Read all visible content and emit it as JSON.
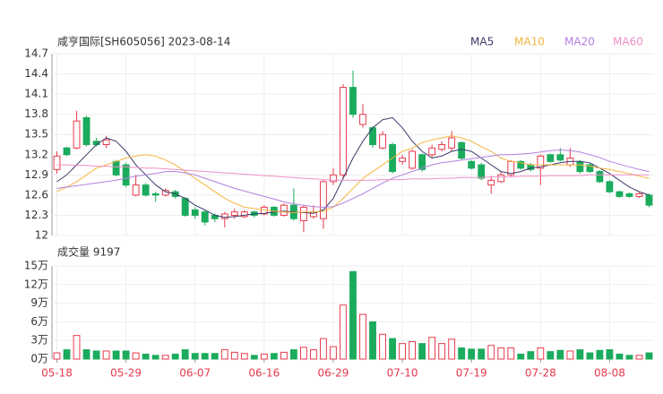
{
  "chart_data": [
    {
      "type": "candlestick",
      "title": "咸亨国际[SH605056] 2023-08-14",
      "categories": [
        "05-18",
        null,
        null,
        null,
        null,
        null,
        null,
        "05-29",
        null,
        null,
        null,
        null,
        null,
        null,
        "06-07",
        null,
        null,
        null,
        null,
        null,
        null,
        "06-16",
        null,
        null,
        null,
        null,
        null,
        null,
        "06-29",
        null,
        null,
        null,
        null,
        null,
        null,
        "07-10",
        null,
        null,
        null,
        null,
        null,
        null,
        "07-19",
        null,
        null,
        null,
        null,
        null,
        null,
        "07-28",
        null,
        null,
        null,
        null,
        null,
        null,
        "08-08",
        null,
        null,
        null,
        null
      ],
      "open": [
        12.98,
        13.3,
        13.3,
        13.75,
        13.4,
        13.35,
        13.1,
        13.05,
        12.6,
        12.75,
        12.62,
        12.6,
        12.65,
        12.55,
        12.38,
        12.35,
        12.3,
        12.25,
        12.3,
        12.28,
        12.35,
        12.32,
        12.42,
        12.3,
        12.45,
        12.22,
        12.28,
        12.25,
        12.8,
        12.9,
        14.2,
        13.65,
        13.6,
        13.3,
        13.35,
        13.1,
        13.0,
        13.2,
        13.2,
        13.28,
        13.3,
        13.38,
        13.1,
        13.05,
        12.75,
        12.8,
        12.9,
        13.1,
        13.05,
        13.0,
        13.2,
        13.2,
        13.05,
        13.1,
        13.05,
        12.95,
        12.8,
        12.65,
        12.62,
        12.58,
        12.6
      ],
      "high": [
        13.25,
        13.32,
        13.85,
        13.78,
        13.45,
        13.48,
        13.12,
        13.08,
        12.9,
        12.78,
        12.65,
        12.7,
        12.68,
        12.57,
        12.42,
        12.38,
        12.33,
        12.35,
        12.4,
        12.38,
        12.37,
        12.45,
        12.44,
        12.48,
        12.7,
        12.45,
        12.45,
        12.82,
        13.0,
        14.25,
        14.45,
        13.95,
        13.62,
        13.55,
        13.38,
        13.2,
        13.28,
        13.22,
        13.35,
        13.4,
        13.55,
        13.4,
        13.12,
        13.08,
        12.88,
        12.95,
        13.12,
        13.12,
        13.08,
        13.2,
        13.22,
        13.3,
        13.3,
        13.12,
        13.07,
        12.97,
        12.82,
        12.67,
        12.64,
        12.64,
        12.62
      ],
      "low": [
        12.92,
        13.18,
        13.28,
        13.32,
        13.32,
        13.3,
        12.88,
        12.72,
        12.58,
        12.58,
        12.5,
        12.58,
        12.55,
        12.28,
        12.25,
        12.15,
        12.2,
        12.12,
        12.25,
        12.26,
        12.27,
        12.3,
        12.28,
        12.28,
        12.22,
        12.05,
        12.25,
        12.1,
        12.75,
        12.85,
        13.75,
        13.6,
        13.3,
        13.28,
        12.92,
        13.05,
        12.98,
        12.95,
        13.15,
        13.25,
        13.25,
        13.12,
        12.98,
        12.82,
        12.62,
        12.78,
        12.88,
        12.98,
        12.95,
        12.75,
        13.08,
        13.1,
        13.02,
        12.92,
        12.93,
        12.78,
        12.63,
        12.56,
        12.56,
        12.56,
        12.42
      ],
      "close": [
        13.18,
        13.2,
        13.7,
        13.35,
        13.35,
        13.42,
        12.9,
        12.75,
        12.75,
        12.6,
        12.6,
        12.67,
        12.58,
        12.3,
        12.3,
        12.2,
        12.25,
        12.32,
        12.35,
        12.35,
        12.3,
        12.42,
        12.3,
        12.45,
        12.25,
        12.42,
        12.35,
        12.8,
        12.9,
        14.2,
        13.8,
        13.8,
        13.35,
        13.5,
        12.95,
        13.15,
        13.25,
        12.98,
        13.3,
        13.35,
        13.45,
        13.15,
        13.0,
        12.85,
        12.82,
        12.9,
        13.1,
        13.0,
        12.98,
        13.18,
        13.1,
        13.12,
        13.15,
        12.95,
        12.95,
        12.8,
        12.65,
        12.58,
        12.58,
        12.62,
        12.45
      ],
      "series": [
        {
          "name": "MA5",
          "color": "#3a3a6a",
          "values": [
            12.8,
            12.9,
            13.05,
            13.2,
            13.35,
            13.45,
            13.4,
            13.25,
            13.05,
            12.9,
            12.75,
            12.65,
            12.62,
            12.55,
            12.45,
            12.38,
            12.3,
            12.27,
            12.28,
            12.3,
            12.32,
            12.33,
            12.35,
            12.36,
            12.35,
            12.34,
            12.33,
            12.38,
            12.55,
            12.85,
            13.15,
            13.4,
            13.6,
            13.72,
            13.75,
            13.6,
            13.4,
            13.25,
            13.15,
            13.18,
            13.25,
            13.28,
            13.25,
            13.15,
            13.05,
            12.95,
            12.92,
            12.95,
            13.0,
            13.02,
            13.05,
            13.08,
            13.1,
            13.1,
            13.08,
            13.0,
            12.92,
            12.82,
            12.72,
            12.65,
            12.6
          ]
        },
        {
          "name": "MA10",
          "color": "#f5b440",
          "values": [
            12.65,
            12.72,
            12.8,
            12.9,
            13.0,
            13.05,
            13.1,
            13.15,
            13.18,
            13.2,
            13.18,
            13.12,
            13.05,
            12.95,
            12.85,
            12.75,
            12.65,
            12.55,
            12.48,
            12.42,
            12.4,
            12.38,
            12.36,
            12.35,
            12.34,
            12.35,
            12.35,
            12.36,
            12.42,
            12.55,
            12.7,
            12.85,
            12.95,
            13.05,
            13.15,
            13.25,
            13.3,
            13.38,
            13.42,
            13.45,
            13.48,
            13.45,
            13.4,
            13.32,
            13.25,
            13.15,
            13.1,
            13.08,
            13.05,
            13.05,
            13.05,
            13.05,
            13.05,
            13.05,
            13.03,
            13.0,
            12.98,
            12.95,
            12.92,
            12.88,
            12.85
          ]
        },
        {
          "name": "MA20",
          "color": "#b37fe0",
          "values": [
            12.7,
            12.72,
            12.74,
            12.76,
            12.78,
            12.8,
            12.82,
            12.85,
            12.88,
            12.9,
            12.92,
            12.95,
            12.95,
            12.93,
            12.9,
            12.85,
            12.8,
            12.75,
            12.7,
            12.66,
            12.62,
            12.58,
            12.54,
            12.5,
            12.47,
            12.45,
            12.43,
            12.42,
            12.43,
            12.48,
            12.55,
            12.62,
            12.7,
            12.78,
            12.85,
            12.9,
            12.95,
            13.0,
            13.05,
            13.08,
            13.1,
            13.12,
            13.14,
            13.16,
            13.18,
            13.2,
            13.2,
            13.21,
            13.22,
            13.24,
            13.26,
            13.27,
            13.26,
            13.24,
            13.2,
            13.16,
            13.1,
            13.06,
            13.02,
            12.98,
            12.95
          ]
        },
        {
          "name": "MA60",
          "color": "#f08fc6",
          "values": [
            13.05,
            13.05,
            13.04,
            13.04,
            13.03,
            13.03,
            13.02,
            13.02,
            13.01,
            13.0,
            13.0,
            12.99,
            12.98,
            12.97,
            12.96,
            12.95,
            12.94,
            12.93,
            12.92,
            12.91,
            12.9,
            12.89,
            12.88,
            12.87,
            12.86,
            12.85,
            12.84,
            12.83,
            12.82,
            12.82,
            12.82,
            12.82,
            12.82,
            12.83,
            12.83,
            12.83,
            12.84,
            12.84,
            12.84,
            12.85,
            12.85,
            12.86,
            12.86,
            12.86,
            12.87,
            12.87,
            12.87,
            12.88,
            12.88,
            12.88,
            12.89,
            12.89,
            12.89,
            12.89,
            12.9,
            12.9,
            12.9,
            12.9,
            12.9,
            12.9,
            12.9
          ]
        }
      ],
      "up_color": "#e63a4c",
      "down_color": "#1aab5c",
      "ylim": [
        12,
        14.7
      ],
      "yticks": [
        12,
        12.3,
        12.6,
        12.9,
        13.2,
        13.5,
        13.8,
        14.1,
        14.4,
        14.7
      ],
      "grid": true
    },
    {
      "type": "bar",
      "title": "成交量 9197",
      "values": [
        1.0,
        1.5,
        3.8,
        1.5,
        1.3,
        1.3,
        1.3,
        1.3,
        1.0,
        0.8,
        0.6,
        0.6,
        0.8,
        1.5,
        0.9,
        0.9,
        0.9,
        1.5,
        1.1,
        0.9,
        0.6,
        0.8,
        0.9,
        1.1,
        1.5,
        1.9,
        1.5,
        3.3,
        2.0,
        8.7,
        14.1,
        7.2,
        6.0,
        4.0,
        3.3,
        2.5,
        2.8,
        2.5,
        3.5,
        2.5,
        3.2,
        1.8,
        1.6,
        1.6,
        2.2,
        1.8,
        1.8,
        0.8,
        1.2,
        1.8,
        1.2,
        1.4,
        1.3,
        1.5,
        1.0,
        1.4,
        1.5,
        0.8,
        0.6,
        0.6,
        1.0
      ],
      "ylim": [
        0,
        15
      ],
      "yticks": [
        {
          "value": 0,
          "label": "0万"
        },
        {
          "value": 3,
          "label": "3万"
        },
        {
          "value": 6,
          "label": "6万"
        },
        {
          "value": 9,
          "label": "9万"
        },
        {
          "value": 12,
          "label": "12万"
        },
        {
          "value": 15,
          "label": "15万"
        }
      ],
      "grid": true
    }
  ]
}
